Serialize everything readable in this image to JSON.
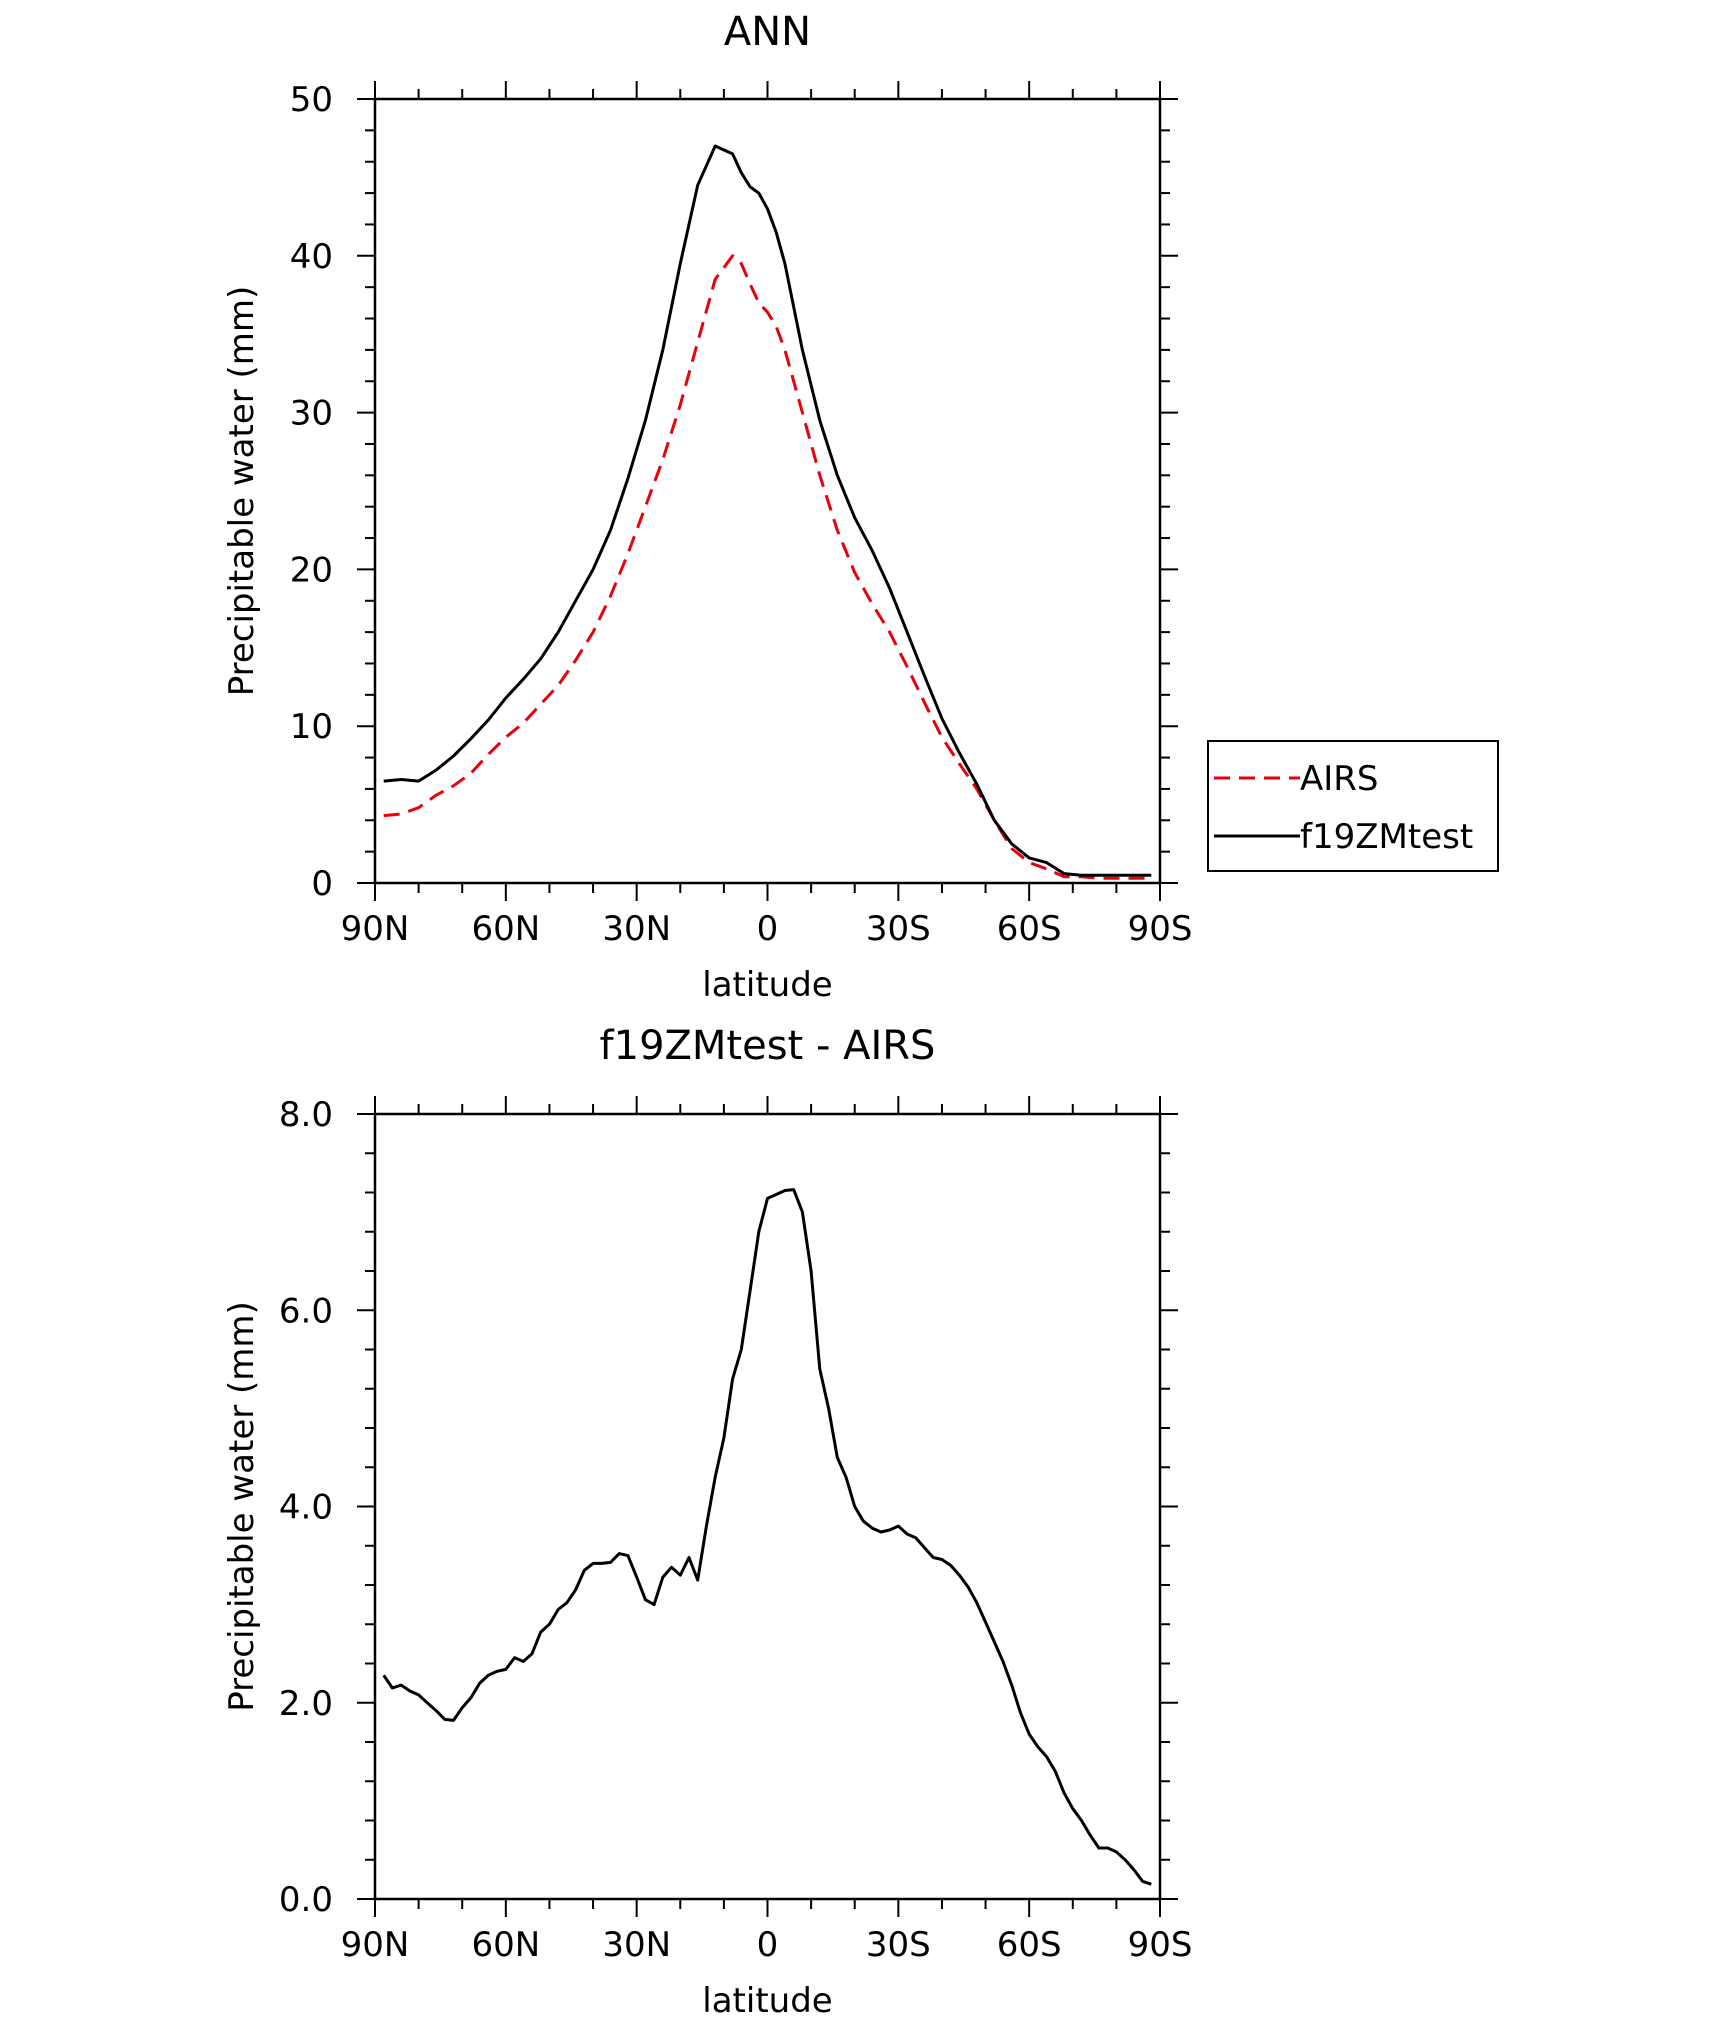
{
  "chart_data": [
    {
      "type": "line",
      "title": "ANN",
      "xlabel": "latitude",
      "ylabel": "Precipitable water (mm)",
      "xlim": [
        90,
        -90
      ],
      "ylim": [
        0,
        50
      ],
      "x_ticks": [
        90,
        60,
        30,
        0,
        -30,
        -60,
        -90
      ],
      "x_tick_labels": [
        "90N",
        "60N",
        "30N",
        "0",
        "30S",
        "60S",
        "90S"
      ],
      "y_ticks": [
        0,
        10,
        20,
        30,
        40,
        50
      ],
      "y_tick_labels": [
        "0",
        "10",
        "20",
        "30",
        "40",
        "50"
      ],
      "legend_position": "right",
      "legend": [
        "AIRS",
        "f19ZMtest"
      ],
      "series": [
        {
          "name": "AIRS",
          "color": "#e8000b",
          "dash": "dashed",
          "x": [
            88,
            84,
            80,
            76,
            72,
            68,
            64,
            60,
            56,
            52,
            48,
            44,
            40,
            36,
            32,
            28,
            24,
            20,
            16,
            12,
            8,
            6,
            4,
            2,
            0,
            -2,
            -4,
            -8,
            -12,
            -16,
            -20,
            -24,
            -28,
            -32,
            -36,
            -40,
            -44,
            -48,
            -52,
            -56,
            -60,
            -64,
            -68,
            -72,
            -76,
            -80,
            -84,
            -88
          ],
          "values": [
            4.3,
            4.4,
            4.8,
            5.6,
            6.2,
            7.0,
            8.2,
            9.3,
            10.2,
            11.4,
            12.6,
            14.2,
            16.0,
            18.3,
            21.0,
            24.0,
            27.0,
            30.5,
            34.5,
            38.5,
            40.0,
            39.5,
            38.2,
            37.0,
            36.4,
            35.5,
            34.0,
            30.0,
            26.0,
            22.5,
            19.8,
            17.8,
            16.0,
            13.8,
            11.5,
            9.3,
            7.6,
            6.0,
            4.0,
            2.2,
            1.3,
            0.9,
            0.4,
            0.4,
            0.3,
            0.3,
            0.3,
            0.3
          ]
        },
        {
          "name": "f19ZMtest",
          "color": "#000000",
          "dash": "solid",
          "x": [
            88,
            84,
            80,
            76,
            72,
            68,
            64,
            60,
            56,
            52,
            48,
            44,
            40,
            36,
            32,
            28,
            24,
            20,
            16,
            12,
            8,
            6,
            4,
            2,
            0,
            -2,
            -4,
            -8,
            -12,
            -16,
            -20,
            -24,
            -28,
            -32,
            -36,
            -40,
            -44,
            -48,
            -52,
            -56,
            -60,
            -64,
            -68,
            -72,
            -76,
            -80,
            -84,
            -88
          ],
          "values": [
            6.5,
            6.6,
            6.5,
            7.2,
            8.1,
            9.2,
            10.4,
            11.8,
            13.0,
            14.3,
            16.0,
            18.0,
            20.0,
            22.5,
            25.8,
            29.5,
            34.0,
            39.5,
            44.5,
            47.0,
            46.5,
            45.3,
            44.4,
            44.0,
            43.0,
            41.5,
            39.5,
            34.0,
            29.5,
            26.0,
            23.3,
            21.2,
            18.8,
            16.0,
            13.2,
            10.5,
            8.3,
            6.3,
            4.0,
            2.5,
            1.6,
            1.3,
            0.6,
            0.5,
            0.5,
            0.5,
            0.5,
            0.5
          ]
        }
      ]
    },
    {
      "type": "line",
      "title": "f19ZMtest - AIRS",
      "xlabel": "latitude",
      "ylabel": "Precipitable water (mm)",
      "xlim": [
        90,
        -90
      ],
      "ylim": [
        0,
        8
      ],
      "x_ticks": [
        90,
        60,
        30,
        0,
        -30,
        -60,
        -90
      ],
      "x_tick_labels": [
        "90N",
        "60N",
        "30N",
        "0",
        "30S",
        "60S",
        "90S"
      ],
      "y_ticks": [
        0,
        2,
        4,
        6,
        8
      ],
      "y_tick_labels": [
        "0.0",
        "2.0",
        "4.0",
        "6.0",
        "8.0"
      ],
      "series": [
        {
          "name": "f19ZMtest - AIRS",
          "color": "#000000",
          "dash": "solid",
          "x": [
            88,
            86,
            84,
            82,
            80,
            78,
            76,
            74,
            72,
            70,
            68,
            66,
            64,
            62,
            60,
            58,
            56,
            54,
            52,
            50,
            48,
            46,
            44,
            42,
            40,
            38,
            36,
            34,
            32,
            30,
            28,
            26,
            24,
            22,
            20,
            18,
            16,
            14,
            12,
            10,
            8,
            6,
            4,
            2,
            0,
            -2,
            -4,
            -6,
            -8,
            -10,
            -12,
            -14,
            -16,
            -18,
            -20,
            -22,
            -24,
            -26,
            -28,
            -30,
            -32,
            -34,
            -36,
            -38,
            -40,
            -42,
            -44,
            -46,
            -48,
            -50,
            -52,
            -54,
            -56,
            -58,
            -60,
            -62,
            -64,
            -66,
            -68,
            -70,
            -72,
            -74,
            -76,
            -78,
            -80,
            -82,
            -84,
            -86,
            -88
          ],
          "values": [
            2.28,
            2.15,
            2.18,
            2.12,
            2.08,
            2.0,
            1.92,
            1.83,
            1.82,
            1.95,
            2.05,
            2.2,
            2.28,
            2.32,
            2.34,
            2.46,
            2.42,
            2.5,
            2.72,
            2.8,
            2.95,
            3.02,
            3.15,
            3.35,
            3.42,
            3.42,
            3.43,
            3.52,
            3.5,
            3.28,
            3.05,
            3.0,
            3.28,
            3.38,
            3.3,
            3.48,
            3.25,
            3.8,
            4.3,
            4.7,
            5.3,
            5.6,
            6.2,
            6.8,
            7.14,
            7.18,
            7.22,
            7.23,
            7.0,
            6.4,
            5.4,
            5.0,
            4.5,
            4.3,
            4.0,
            3.85,
            3.78,
            3.74,
            3.76,
            3.8,
            3.72,
            3.68,
            3.58,
            3.48,
            3.46,
            3.4,
            3.3,
            3.18,
            3.02,
            2.82,
            2.62,
            2.42,
            2.18,
            1.9,
            1.68,
            1.55,
            1.45,
            1.3,
            1.08,
            0.92,
            0.8,
            0.65,
            0.52,
            0.52,
            0.48,
            0.4,
            0.3,
            0.18,
            0.15
          ]
        }
      ]
    }
  ]
}
